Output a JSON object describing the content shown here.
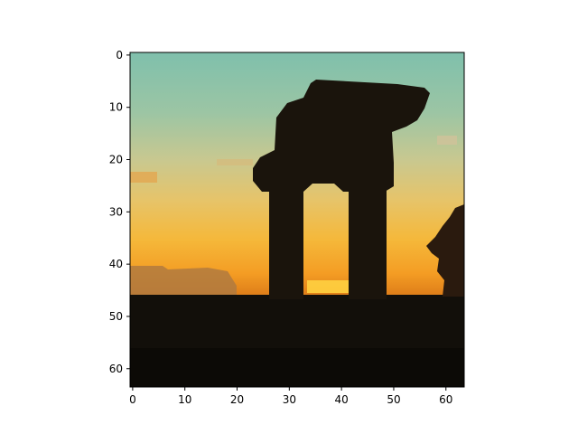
{
  "chart_data": {
    "type": "heatmap",
    "image": "64x64 pixelated photograph: silhouette of a ruined stone arch gateway with two columns against a sunset sky (teal-green fading to orange and yellow), dark ground at bottom, small tree at right edge",
    "x_ticks": [
      0,
      10,
      20,
      30,
      40,
      50,
      60
    ],
    "y_ticks": [
      0,
      10,
      20,
      30,
      40,
      50,
      60
    ],
    "x_tick_labels": [
      "0",
      "10",
      "20",
      "30",
      "40",
      "50",
      "60"
    ],
    "y_tick_labels": [
      "0",
      "10",
      "20",
      "30",
      "40",
      "50",
      "60"
    ],
    "xlim": [
      -0.5,
      63.5
    ],
    "ylim": [
      63.5,
      -0.5
    ],
    "grid": false,
    "colors": {
      "sky_top": "#7fc0ac",
      "sky_mid": "#c8c890",
      "sky_glow": "#f5b83a",
      "horizon": "#f08a1c",
      "silhouette": "#1a140c",
      "ground": "#120f0a"
    }
  }
}
